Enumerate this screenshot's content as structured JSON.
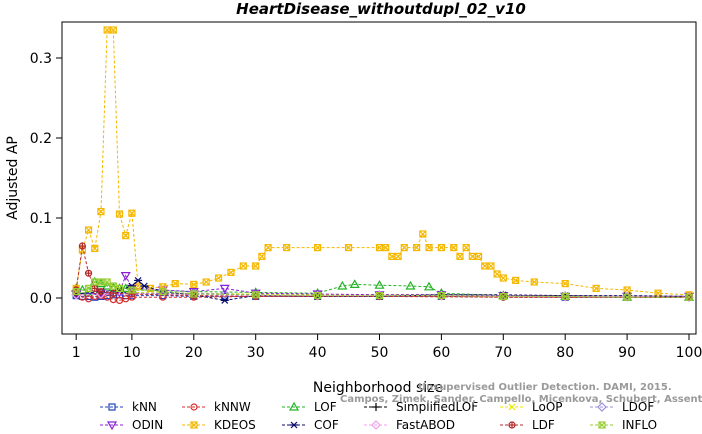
{
  "chart_data": {
    "type": "line",
    "title": "HeartDisease_withoutdupl_02_v10",
    "xlabel": "Neighborhood size",
    "ylabel": "Adjusted AP",
    "xlim": [
      0,
      100
    ],
    "ylim": [
      -0.045,
      0.345
    ],
    "x_ticks": [
      1,
      10,
      20,
      30,
      40,
      50,
      60,
      70,
      80,
      90,
      100
    ],
    "y_ticks": [
      0.0,
      0.1,
      0.2,
      0.3
    ],
    "y_tick_labels": [
      "0.0",
      "0.1",
      "0.2",
      "0.3"
    ],
    "grid": false,
    "legend_position": "bottom",
    "series": [
      {
        "name": "kNN",
        "color": "#1f3fbf",
        "marker": "square",
        "points": [
          [
            1,
            0.003
          ],
          [
            2,
            0.002
          ],
          [
            3,
            0.002
          ],
          [
            4,
            0.001
          ],
          [
            5,
            0.002
          ],
          [
            6,
            0.003
          ],
          [
            7,
            0.004
          ],
          [
            8,
            0.004
          ],
          [
            9,
            0.003
          ],
          [
            10,
            0.003
          ],
          [
            15,
            0.003
          ],
          [
            20,
            0.002
          ],
          [
            25,
            0.002
          ],
          [
            30,
            0.002
          ],
          [
            40,
            0.002
          ],
          [
            50,
            0.002
          ],
          [
            60,
            0.002
          ],
          [
            70,
            0.002
          ],
          [
            80,
            0.001
          ],
          [
            90,
            0.001
          ],
          [
            100,
            0.001
          ]
        ]
      },
      {
        "name": "kNNW",
        "color": "#d62d2d",
        "marker": "circle",
        "points": [
          [
            1,
            0.004
          ],
          [
            2,
            0.001
          ],
          [
            3,
            -0.001
          ],
          [
            4,
            0.002
          ],
          [
            5,
            0.003
          ],
          [
            6,
            0.001
          ],
          [
            7,
            -0.002
          ],
          [
            8,
            -0.003
          ],
          [
            9,
            -0.001
          ],
          [
            10,
            0.001
          ],
          [
            15,
            0.001
          ],
          [
            20,
            0.001
          ],
          [
            30,
            0.002
          ],
          [
            40,
            0.002
          ],
          [
            50,
            0.002
          ],
          [
            60,
            0.002
          ],
          [
            70,
            0.001
          ],
          [
            80,
            0.001
          ],
          [
            90,
            0.001
          ],
          [
            100,
            0.001
          ]
        ]
      },
      {
        "name": "LOF",
        "color": "#22b322",
        "marker": "triangle-up",
        "points": [
          [
            1,
            0.012
          ],
          [
            2,
            0.01
          ],
          [
            3,
            0.008
          ],
          [
            4,
            0.02
          ],
          [
            5,
            0.018
          ],
          [
            6,
            0.015
          ],
          [
            7,
            0.013
          ],
          [
            8,
            0.012
          ],
          [
            9,
            0.012
          ],
          [
            10,
            0.011
          ],
          [
            15,
            0.009
          ],
          [
            20,
            0.008
          ],
          [
            30,
            0.007
          ],
          [
            40,
            0.006
          ],
          [
            44,
            0.015
          ],
          [
            46,
            0.017
          ],
          [
            50,
            0.016
          ],
          [
            55,
            0.015
          ],
          [
            58,
            0.014
          ],
          [
            60,
            0.006
          ],
          [
            70,
            0.003
          ],
          [
            80,
            0.002
          ],
          [
            90,
            0.001
          ],
          [
            100,
            0.001
          ]
        ]
      },
      {
        "name": "SimplifiedLOF",
        "color": "#000000",
        "marker": "plus",
        "points": [
          [
            1,
            0.005
          ],
          [
            5,
            0.006
          ],
          [
            10,
            0.006
          ],
          [
            20,
            0.005
          ],
          [
            30,
            0.004
          ],
          [
            40,
            0.004
          ],
          [
            50,
            0.004
          ],
          [
            60,
            0.004
          ],
          [
            70,
            0.003
          ],
          [
            80,
            0.003
          ],
          [
            90,
            0.002
          ],
          [
            100,
            0.002
          ]
        ]
      },
      {
        "name": "LoOP",
        "color": "#e8e800",
        "marker": "x",
        "points": [
          [
            1,
            0.006
          ],
          [
            5,
            0.007
          ],
          [
            10,
            0.007
          ],
          [
            20,
            0.006
          ],
          [
            30,
            0.005
          ],
          [
            40,
            0.004
          ],
          [
            50,
            0.004
          ],
          [
            60,
            0.004
          ],
          [
            70,
            0.003
          ],
          [
            80,
            0.002
          ],
          [
            90,
            0.002
          ],
          [
            100,
            0.001
          ]
        ]
      },
      {
        "name": "LDOF",
        "color": "#9b8fd9",
        "marker": "diamond",
        "points": [
          [
            1,
            0.004
          ],
          [
            5,
            0.005
          ],
          [
            10,
            0.006
          ],
          [
            20,
            0.006
          ],
          [
            25,
            0.005
          ],
          [
            30,
            0.004
          ],
          [
            40,
            0.003
          ],
          [
            50,
            0.003
          ],
          [
            60,
            0.003
          ],
          [
            70,
            0.002
          ],
          [
            80,
            0.002
          ],
          [
            90,
            0.002
          ],
          [
            100,
            0.001
          ]
        ]
      },
      {
        "name": "ODIN",
        "color": "#8b1fd9",
        "marker": "triangle-down",
        "points": [
          [
            1,
            0.005
          ],
          [
            5,
            0.006
          ],
          [
            8,
            0.007
          ],
          [
            9,
            0.028
          ],
          [
            10,
            0.012
          ],
          [
            15,
            0.01
          ],
          [
            20,
            0.008
          ],
          [
            25,
            0.012
          ],
          [
            30,
            0.006
          ],
          [
            40,
            0.005
          ],
          [
            50,
            0.004
          ],
          [
            60,
            0.004
          ],
          [
            70,
            0.003
          ],
          [
            80,
            0.002
          ],
          [
            90,
            0.002
          ],
          [
            100,
            0.002
          ]
        ]
      },
      {
        "name": "KDEOS",
        "color": "#f5b800",
        "marker": "square-x",
        "points": [
          [
            1,
            0.012
          ],
          [
            2,
            0.06
          ],
          [
            3,
            0.085
          ],
          [
            4,
            0.062
          ],
          [
            5,
            0.108
          ],
          [
            6,
            0.335
          ],
          [
            7,
            0.335
          ],
          [
            8,
            0.105
          ],
          [
            9,
            0.078
          ],
          [
            10,
            0.106
          ],
          [
            11,
            0.015
          ],
          [
            13,
            0.012
          ],
          [
            15,
            0.014
          ],
          [
            17,
            0.018
          ],
          [
            20,
            0.017
          ],
          [
            22,
            0.02
          ],
          [
            24,
            0.025
          ],
          [
            26,
            0.032
          ],
          [
            28,
            0.04
          ],
          [
            30,
            0.04
          ],
          [
            31,
            0.052
          ],
          [
            32,
            0.063
          ],
          [
            35,
            0.063
          ],
          [
            40,
            0.063
          ],
          [
            45,
            0.063
          ],
          [
            50,
            0.063
          ],
          [
            51,
            0.063
          ],
          [
            52,
            0.052
          ],
          [
            53,
            0.052
          ],
          [
            54,
            0.063
          ],
          [
            56,
            0.063
          ],
          [
            57,
            0.08
          ],
          [
            58,
            0.063
          ],
          [
            60,
            0.063
          ],
          [
            62,
            0.063
          ],
          [
            63,
            0.052
          ],
          [
            64,
            0.063
          ],
          [
            65,
            0.052
          ],
          [
            66,
            0.052
          ],
          [
            67,
            0.04
          ],
          [
            68,
            0.04
          ],
          [
            69,
            0.03
          ],
          [
            70,
            0.025
          ],
          [
            72,
            0.022
          ],
          [
            75,
            0.02
          ],
          [
            80,
            0.018
          ],
          [
            85,
            0.012
          ],
          [
            90,
            0.01
          ],
          [
            95,
            0.006
          ],
          [
            100,
            0.004
          ]
        ]
      },
      {
        "name": "COF",
        "color": "#0a0a6b",
        "marker": "asterisk",
        "points": [
          [
            1,
            0.005
          ],
          [
            5,
            0.008
          ],
          [
            8,
            0.01
          ],
          [
            10,
            0.015
          ],
          [
            11,
            0.022
          ],
          [
            12,
            0.015
          ],
          [
            15,
            0.008
          ],
          [
            20,
            0.004
          ],
          [
            25,
            -0.003
          ],
          [
            30,
            0.003
          ],
          [
            40,
            0.002
          ],
          [
            50,
            0.002
          ],
          [
            60,
            0.004
          ],
          [
            70,
            0.004
          ],
          [
            80,
            0.003
          ],
          [
            90,
            0.003
          ],
          [
            100,
            0.002
          ]
        ]
      },
      {
        "name": "FastABOD",
        "color": "#f0a0e8",
        "marker": "diamond",
        "points": [
          [
            1,
            0.004
          ],
          [
            5,
            0.005
          ],
          [
            10,
            0.005
          ],
          [
            20,
            0.004
          ],
          [
            30,
            0.003
          ],
          [
            40,
            0.003
          ],
          [
            50,
            0.003
          ],
          [
            60,
            0.003
          ],
          [
            70,
            0.002
          ],
          [
            80,
            0.002
          ],
          [
            90,
            0.002
          ],
          [
            100,
            0.001
          ]
        ]
      },
      {
        "name": "LDF",
        "color": "#b22a2a",
        "marker": "circle-plus",
        "points": [
          [
            1,
            0.01
          ],
          [
            2,
            0.065
          ],
          [
            3,
            0.031
          ],
          [
            4,
            0.012
          ],
          [
            5,
            0.008
          ],
          [
            7,
            0.006
          ],
          [
            10,
            0.005
          ],
          [
            20,
            0.003
          ],
          [
            30,
            0.002
          ],
          [
            50,
            0.002
          ],
          [
            70,
            0.001
          ],
          [
            100,
            0.001
          ]
        ]
      },
      {
        "name": "INFLO",
        "color": "#9acd32",
        "marker": "square-x",
        "points": [
          [
            1,
            0.008
          ],
          [
            3,
            0.012
          ],
          [
            4,
            0.02
          ],
          [
            5,
            0.02
          ],
          [
            6,
            0.02
          ],
          [
            7,
            0.015
          ],
          [
            8,
            0.012
          ],
          [
            10,
            0.01
          ],
          [
            15,
            0.008
          ],
          [
            20,
            0.005
          ],
          [
            30,
            0.004
          ],
          [
            40,
            0.003
          ],
          [
            50,
            0.003
          ],
          [
            60,
            0.003
          ],
          [
            70,
            0.002
          ],
          [
            80,
            0.002
          ],
          [
            90,
            0.001
          ],
          [
            100,
            0.001
          ]
        ]
      }
    ]
  },
  "watermark": {
    "line1": "Unsupervised Outlier Detection. DAMI, 2015.",
    "line2": "Campos, Zimek, Sander, Campello, Micenkova, Schubert, Assent, Houle"
  }
}
